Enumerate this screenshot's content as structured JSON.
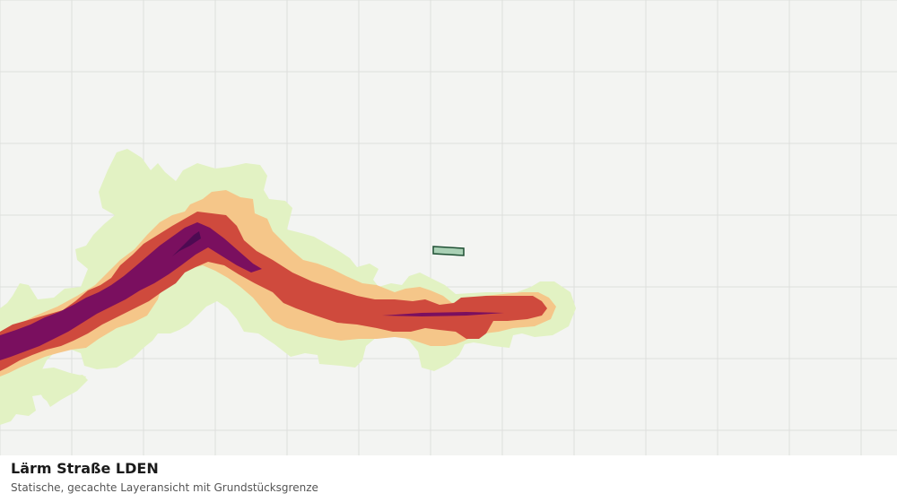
{
  "map": {
    "colors": {
      "background": "#f3f4f2",
      "grid": "#dedfdc",
      "noise_band_outer": "#e2f2c3",
      "noise_band_light": "#f5c689",
      "noise_band_medium": "#cf4a3d",
      "noise_band_high": "#7a0f5f",
      "noise_band_very_high": "#4d0a52",
      "parcel_fill": "#a9d0b5",
      "parcel_stroke": "#1e4f33"
    }
  },
  "caption": {
    "title": "Lärm Straße LDEN",
    "subtitle": "Statische, gecachte Layeransicht mit Grundstücksgrenze"
  }
}
